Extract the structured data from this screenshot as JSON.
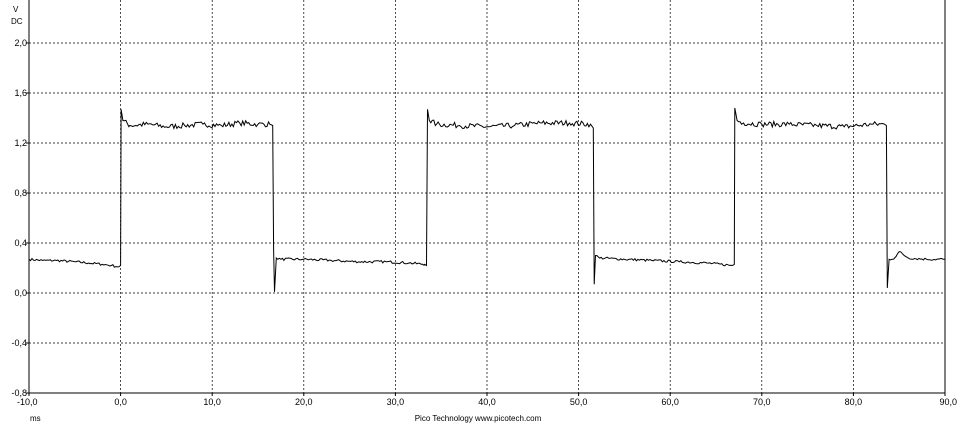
{
  "chart_data": {
    "type": "line",
    "title": "",
    "y_unit": "V",
    "y_coupling": "DC",
    "x_unit": "ms",
    "credit": "Pico Technology  www.picotech.com",
    "xlim": [
      -10.0,
      90.0
    ],
    "ylim": [
      -0.8,
      2.0
    ],
    "x_ticks": [
      "-10,0",
      "0,0",
      "10,0",
      "20,0",
      "30,0",
      "40,0",
      "50,0",
      "60,0",
      "70,0",
      "80,0",
      "90,0"
    ],
    "y_ticks": [
      "2,0",
      "1,6",
      "1,2",
      "0,8",
      "0,4",
      "0,0",
      "-0,4",
      "-0,8"
    ],
    "grid": true,
    "series": [
      {
        "color": "#000000",
        "x": [
          -10.0,
          -8.5,
          -7.0,
          -5.0,
          -3.5,
          -2.0,
          -1.0,
          -0.2,
          0.0,
          0.05,
          0.25,
          1.0,
          3.0,
          5.0,
          7.0,
          9.0,
          11.0,
          13.0,
          15.0,
          16.3,
          16.6,
          16.7,
          16.8,
          17.0,
          17.5,
          20.0,
          23.0,
          26.0,
          29.0,
          31.5,
          33.2,
          33.4,
          33.5,
          33.7,
          34.5,
          37.0,
          40.0,
          43.0,
          46.0,
          49.0,
          51.3,
          51.6,
          51.7,
          51.85,
          52.3,
          55.0,
          58.0,
          61.0,
          64.0,
          66.8,
          67.0,
          67.05,
          67.3,
          68.0,
          70.0,
          73.0,
          76.0,
          79.0,
          82.0,
          83.4,
          83.6,
          83.7,
          83.9,
          84.5,
          85.0,
          86.0,
          88.0,
          90.0
        ],
        "y": [
          0.27,
          0.26,
          0.26,
          0.25,
          0.24,
          0.23,
          0.22,
          0.21,
          0.22,
          1.47,
          1.38,
          1.34,
          1.35,
          1.33,
          1.34,
          1.35,
          1.34,
          1.36,
          1.35,
          1.35,
          1.34,
          0.35,
          0.01,
          0.28,
          0.27,
          0.27,
          0.26,
          0.25,
          0.25,
          0.24,
          0.23,
          0.22,
          1.47,
          1.38,
          1.35,
          1.34,
          1.33,
          1.34,
          1.36,
          1.36,
          1.35,
          1.32,
          0.07,
          0.3,
          0.28,
          0.27,
          0.26,
          0.25,
          0.24,
          0.22,
          0.23,
          1.48,
          1.38,
          1.36,
          1.35,
          1.35,
          1.34,
          1.33,
          1.35,
          1.35,
          1.34,
          0.04,
          0.27,
          0.28,
          0.33,
          0.28,
          0.27,
          0.27
        ]
      }
    ]
  }
}
